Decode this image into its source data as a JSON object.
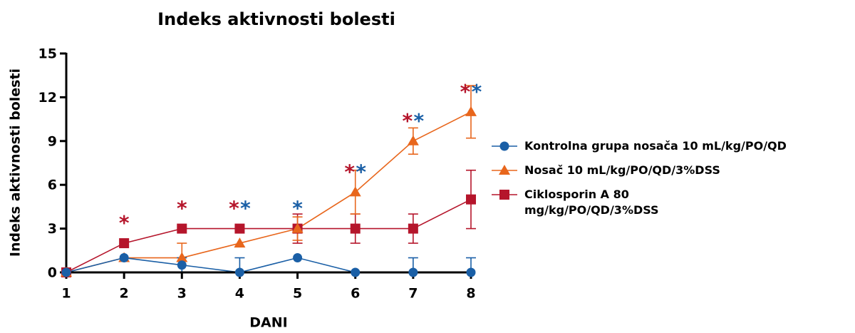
{
  "chart_data": {
    "type": "line",
    "title": "Indeks aktivnosti bolesti",
    "ylabel": "Indeks aktivnosti bolesti",
    "xlabel": "DANI",
    "x": [
      1,
      2,
      3,
      4,
      5,
      6,
      7,
      8
    ],
    "xlim": [
      1,
      8
    ],
    "xticks": [
      1,
      2,
      3,
      4,
      5,
      6,
      7,
      8
    ],
    "ylim": [
      0,
      15
    ],
    "yticks": [
      0,
      3,
      6,
      9,
      12,
      15
    ],
    "series": [
      {
        "name": "Kontrolna grupa nosača 10 mL/kg/PO/QD",
        "color": "#1a5fa6",
        "marker": "circle",
        "values": [
          0,
          1,
          0.5,
          0,
          1,
          0,
          0,
          0
        ],
        "errors": [
          0,
          0,
          0.5,
          1,
          0,
          0,
          1,
          1
        ]
      },
      {
        "name": "Nosač 10 mL/kg/PO/QD/3%DSS",
        "color": "#e8661c",
        "marker": "triangle",
        "values": [
          0,
          1,
          1,
          2,
          3,
          5.5,
          9,
          11
        ],
        "errors": [
          0,
          0,
          1,
          0,
          0.8,
          1.5,
          0.9,
          1.8
        ]
      },
      {
        "name": "Ciklosporin A 80 mg/kg/PO/QD/3%DSS",
        "color": "#b5152b",
        "marker": "square",
        "values": [
          0,
          2,
          3,
          3,
          3,
          3,
          3,
          5
        ],
        "errors": [
          0,
          0,
          0,
          0,
          1,
          1,
          1,
          2
        ]
      }
    ],
    "annotations": [
      {
        "x": 2,
        "text": "*",
        "color": "#b5152b"
      },
      {
        "x": 3,
        "text": "*",
        "color": "#b5152b"
      },
      {
        "x": 4,
        "text": "*",
        "color": "#b5152b"
      },
      {
        "x": 4,
        "text": "*",
        "color": "#1a5fa6"
      },
      {
        "x": 5,
        "text": "*",
        "color": "#1a5fa6"
      },
      {
        "x": 6,
        "text": "*",
        "color": "#b5152b"
      },
      {
        "x": 6,
        "text": "*",
        "color": "#1a5fa6"
      },
      {
        "x": 7,
        "text": "*",
        "color": "#b5152b"
      },
      {
        "x": 7,
        "text": "*",
        "color": "#1a5fa6"
      },
      {
        "x": 8,
        "text": "*",
        "color": "#b5152b"
      },
      {
        "x": 8,
        "text": "*",
        "color": "#1a5fa6"
      }
    ]
  }
}
